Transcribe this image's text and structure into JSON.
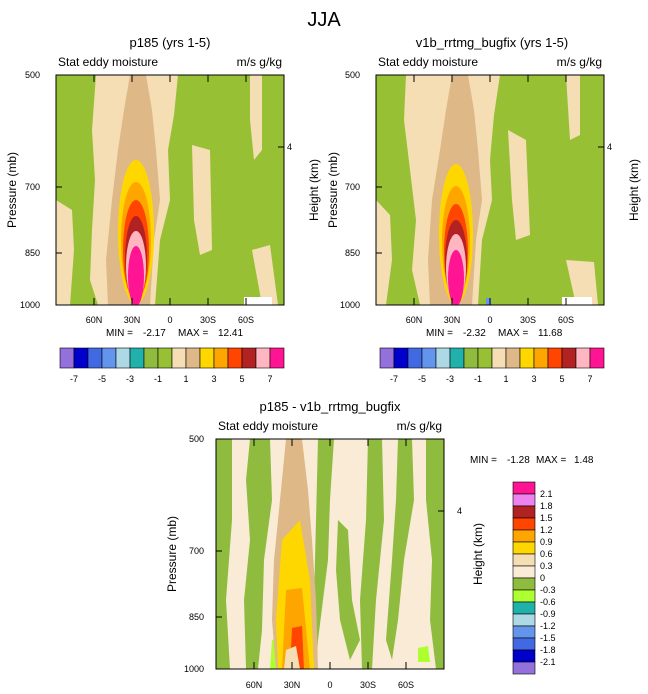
{
  "figure_title": "JJA",
  "chart_data": [
    {
      "type": "heatmap",
      "title": "p185 (yrs 1-5)",
      "subtitle_left": "Stat eddy moisture",
      "subtitle_right": "m/s g/kg",
      "ylabel": "Pressure (mb)",
      "ylabel_right": "Height (km)",
      "yticks": [
        "500",
        "700",
        "850",
        "1000"
      ],
      "yticks_right": [
        "4"
      ],
      "xticks": [
        "60N",
        "30N",
        "0",
        "30S",
        "60S"
      ],
      "min_label": "MIN =",
      "min": "-2.17",
      "max_label": "MAX =",
      "max": "12.41",
      "colorbar_labels": [
        "-7",
        "-5",
        "-3",
        "-1",
        "1",
        "3",
        "5",
        "7"
      ],
      "colors": [
        "#9370DB",
        "#0000CD",
        "#4169E1",
        "#6495ED",
        "#ADD8E6",
        "#20B2AA",
        "#8FBC3F",
        "#98C034",
        "#F5DEB3",
        "#DEB887",
        "#FFD700",
        "#FFA500",
        "#FF4500",
        "#B22222",
        "#FFB6C1",
        "#FF1493"
      ]
    },
    {
      "type": "heatmap",
      "title": "v1b_rrtmg_bugfix (yrs 1-5)",
      "subtitle_left": "Stat eddy moisture",
      "subtitle_right": "m/s g/kg",
      "ylabel": "Pressure (mb)",
      "ylabel_right": "Height (km)",
      "yticks": [
        "500",
        "700",
        "850",
        "1000"
      ],
      "yticks_right": [
        "4"
      ],
      "xticks": [
        "60N",
        "30N",
        "0",
        "30S",
        "60S"
      ],
      "min_label": "MIN =",
      "min": "-2.32",
      "max_label": "MAX =",
      "max": "11.68",
      "colorbar_labels": [
        "-7",
        "-5",
        "-3",
        "-1",
        "1",
        "3",
        "5",
        "7"
      ]
    },
    {
      "type": "heatmap",
      "title": "p185 - v1b_rrtmg_bugfix",
      "subtitle_left": "Stat eddy moisture",
      "subtitle_right": "m/s g/kg",
      "ylabel": "Pressure (mb)",
      "ylabel_right": "Height (km)",
      "yticks": [
        "500",
        "700",
        "850",
        "1000"
      ],
      "yticks_right": [
        "4"
      ],
      "xticks": [
        "60N",
        "30N",
        "0",
        "30S",
        "60S"
      ],
      "min_label": "MIN =",
      "min": "-1.28",
      "max_label": "MAX =",
      "max": "1.48",
      "colorbar_labels": [
        "2.1",
        "1.8",
        "1.5",
        "1.2",
        "0.9",
        "0.6",
        "0.3",
        "0",
        "-0.3",
        "-0.6",
        "-0.9",
        "-1.2",
        "-1.5",
        "-1.8",
        "-2.1"
      ],
      "colors": [
        "#FF1493",
        "#EE82EE",
        "#B22222",
        "#FF4500",
        "#FFA500",
        "#FFD700",
        "#F5DEB3",
        "#FAEBD7",
        "#8FBC3F",
        "#ADFF2F",
        "#20B2AA",
        "#ADD8E6",
        "#6495ED",
        "#4169E1",
        "#0000CD",
        "#9370DB"
      ]
    }
  ]
}
